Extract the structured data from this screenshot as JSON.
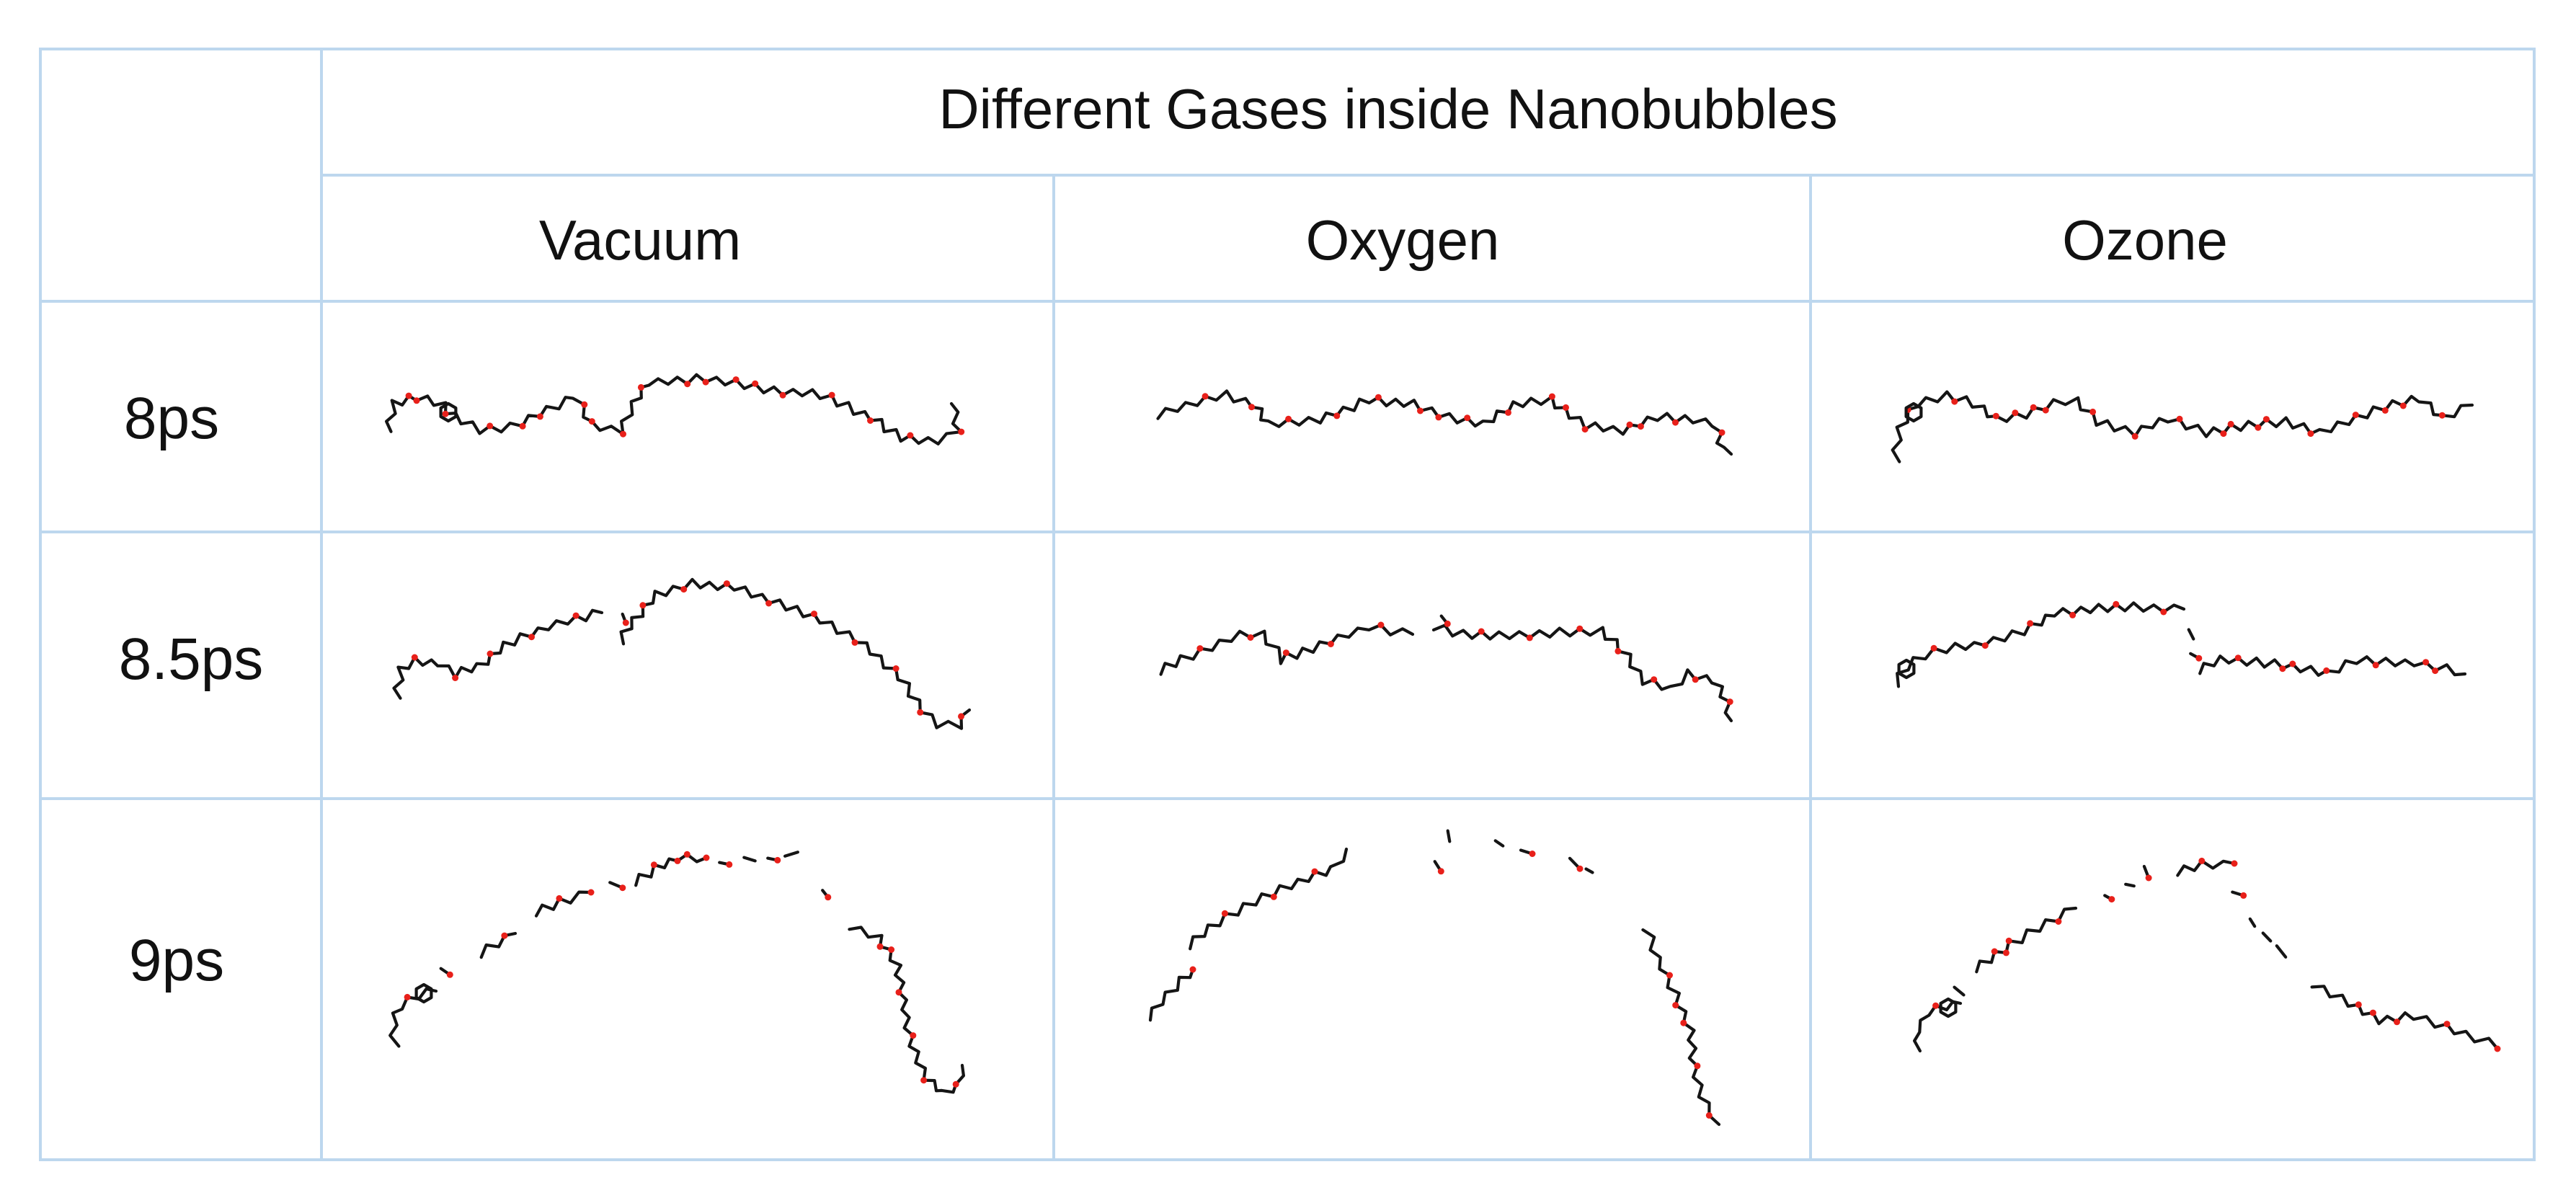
{
  "table": {
    "header": "Different Gases inside Nanobubbles",
    "columns": [
      "Vacuum",
      "Oxygen",
      "Ozone"
    ],
    "rows": [
      "8ps",
      "8.5ps",
      "9ps"
    ]
  },
  "colors": {
    "grid_line": "#bdd7ee",
    "carbon_bond": "#151515",
    "oxygen_atom": "#e8201a"
  }
}
